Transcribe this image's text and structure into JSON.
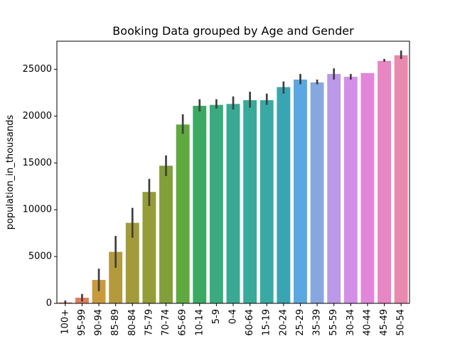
{
  "chart_data": {
    "type": "bar",
    "title": "Booking Data grouped by Age and Gender",
    "xlabel": "",
    "ylabel": "population_in_thousands",
    "ylim": [
      0,
      28000
    ],
    "yticks": [
      0,
      5000,
      10000,
      15000,
      20000,
      25000
    ],
    "grid": false,
    "categories": [
      "100+",
      "95-99",
      "90-94",
      "85-89",
      "80-84",
      "75-79",
      "70-74",
      "65-69",
      "10-14",
      "5-9",
      "0-4",
      "60-64",
      "15-19",
      "20-24",
      "25-29",
      "35-39",
      "55-59",
      "30-34",
      "40-44",
      "45-49",
      "50-54"
    ],
    "values": [
      100,
      600,
      2500,
      5500,
      8600,
      11900,
      14700,
      19100,
      21100,
      21200,
      21300,
      21700,
      21700,
      23100,
      23900,
      23600,
      24500,
      24200,
      24600,
      25900,
      26500
    ],
    "error_low": [
      0,
      200,
      1300,
      3800,
      7000,
      10400,
      13600,
      18100,
      20500,
      20800,
      20700,
      20900,
      21200,
      22400,
      23400,
      23400,
      23900,
      23900,
      24600,
      25800,
      26100
    ],
    "error_high": [
      300,
      1000,
      3700,
      7200,
      10200,
      13300,
      15800,
      20200,
      21800,
      21800,
      22100,
      22600,
      22400,
      23700,
      24500,
      23900,
      25100,
      24500,
      24600,
      26100,
      27000
    ],
    "colors": [
      "#e8787a",
      "#e17e5a",
      "#c99a3d",
      "#b39a3c",
      "#a39b3a",
      "#959d38",
      "#839f3a",
      "#5fa93f",
      "#3aaa63",
      "#3aaa80",
      "#3aa993",
      "#39aa9a",
      "#3aa9a5",
      "#3aa5b2",
      "#5ba8e0",
      "#87a7e0",
      "#bb98e8",
      "#d38fe8",
      "#e286da",
      "#e786c3",
      "#e889ad"
    ]
  }
}
